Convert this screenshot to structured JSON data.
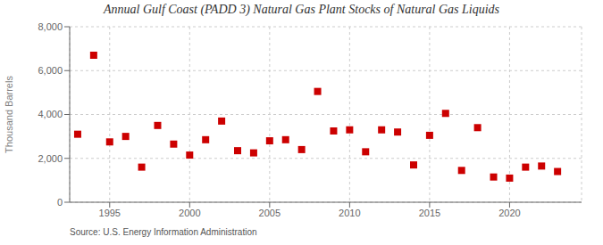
{
  "chart_data": {
    "type": "scatter",
    "title": "Annual Gulf Coast (PADD 3) Natural Gas Plant Stocks of Natural Gas Liquids",
    "y_label": "Thousand Barrels",
    "annotations": [
      "Source: U.S. Energy Information Administration"
    ],
    "x": [
      1993,
      1994,
      1995,
      1996,
      1997,
      1998,
      1999,
      2000,
      2001,
      2002,
      2003,
      2004,
      2005,
      2006,
      2007,
      2008,
      2009,
      2010,
      2011,
      2012,
      2013,
      2014,
      2015,
      2016,
      2017,
      2018,
      2019,
      2020,
      2021,
      2022,
      2023
    ],
    "values": [
      3100,
      6700,
      2750,
      3000,
      1600,
      3500,
      2650,
      2150,
      2850,
      3700,
      2350,
      2250,
      2800,
      2850,
      2400,
      5050,
      3250,
      3300,
      2300,
      3300,
      3200,
      1700,
      3050,
      4050,
      1450,
      3400,
      1150,
      1100,
      1600,
      1650,
      1400
    ],
    "color": "#cc0000",
    "marker": "square",
    "xlim": [
      1992.5,
      2024.5
    ],
    "xticks": [
      1995,
      2000,
      2005,
      2010,
      2015,
      2020
    ],
    "ylim": [
      0,
      8000
    ],
    "yticks": [
      0,
      {
        "value": 2000,
        "label": "2,000"
      },
      {
        "value": 4000,
        "label": "4,000"
      },
      {
        "value": 6000,
        "label": "6,000"
      },
      {
        "value": 8000,
        "label": "8,000"
      }
    ],
    "grid": true
  }
}
